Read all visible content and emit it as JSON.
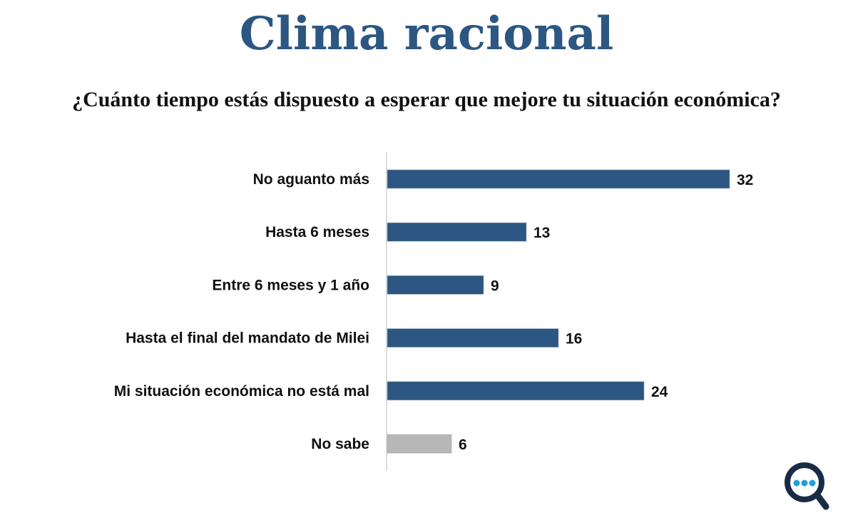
{
  "title": "Clima racional",
  "subtitle": "¿Cuánto tiempo estás dispuesto a esperar que mejore tu situación económica?",
  "logo": {
    "icon": "search-chat-bubble-icon",
    "ring_color": "#1a2b45",
    "dot_color": "#1fa3d8"
  },
  "chart_data": {
    "type": "bar",
    "orientation": "horizontal",
    "title": "Clima racional",
    "subtitle": "¿Cuánto tiempo estás dispuesto a esperar que mejore tu situación económica?",
    "categories": [
      "No aguanto más",
      "Hasta 6 meses",
      "Entre 6 meses y 1 año",
      "Hasta el final del mandato de Milei",
      "Mi situación económica no está mal",
      "No sabe"
    ],
    "values": [
      32,
      13,
      9,
      16,
      24,
      6
    ],
    "colors": [
      "#2b5782",
      "#2b5782",
      "#2b5782",
      "#2b5782",
      "#2b5782",
      "#b7b7b7"
    ],
    "xlim": [
      0,
      40
    ],
    "grid": false,
    "legend": "none",
    "data_labels": true
  }
}
